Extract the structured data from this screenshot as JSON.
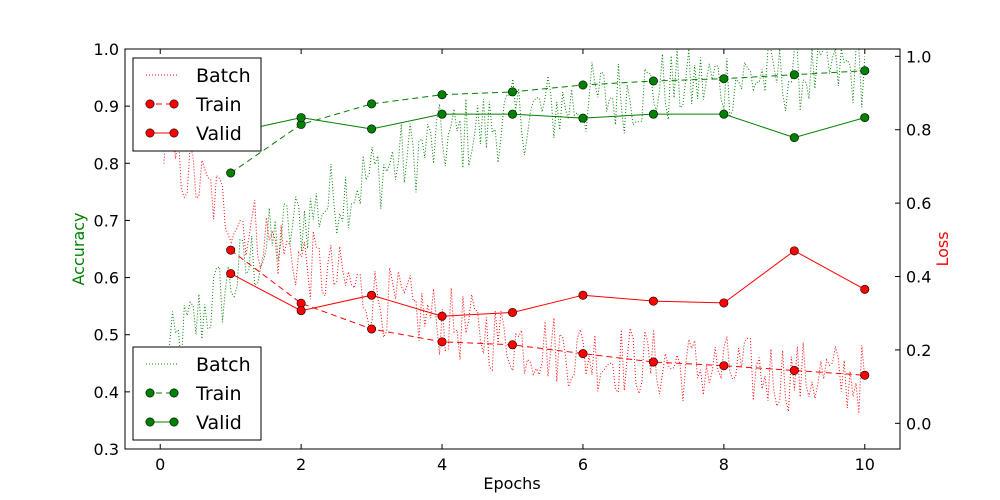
{
  "chart_data": {
    "type": "line",
    "xlabel": "Epochs",
    "ylabel_left": "Accuracy",
    "ylabel_right": "Loss",
    "xlim": [
      -0.5,
      10.5
    ],
    "ylim_left": [
      0.3,
      1.0
    ],
    "ylim_right": [
      -0.07,
      1.02
    ],
    "x_ticks": [
      0,
      2,
      4,
      6,
      8,
      10
    ],
    "y_ticks_left": [
      0.3,
      0.4,
      0.5,
      0.6,
      0.7,
      0.8,
      0.9,
      1.0
    ],
    "y_ticks_right": [
      0.0,
      0.2,
      0.4,
      0.6,
      0.8,
      1.0
    ],
    "colors": {
      "accuracy": "#008000",
      "loss": "#ff0000"
    },
    "legend_top": {
      "position": "upper-left",
      "series": [
        "Batch",
        "Train",
        "Valid"
      ]
    },
    "legend_bottom": {
      "position": "lower-left",
      "series": [
        "Batch",
        "Train",
        "Valid"
      ]
    },
    "accuracy_series": [
      {
        "name": "Train",
        "style": "dashed",
        "x": [
          1,
          2,
          3,
          4,
          5,
          6,
          7,
          8,
          9,
          10
        ],
        "values": [
          0.783,
          0.868,
          0.904,
          0.92,
          0.925,
          0.937,
          0.944,
          0.948,
          0.955,
          0.962
        ]
      },
      {
        "name": "Valid",
        "style": "solid",
        "x": [
          1,
          2,
          3,
          4,
          5,
          6,
          7,
          8,
          9,
          10
        ],
        "values": [
          0.853,
          0.88,
          0.86,
          0.886,
          0.886,
          0.879,
          0.886,
          0.886,
          0.845,
          0.88
        ]
      },
      {
        "name": "Batch",
        "style": "dotted",
        "x_start": 0.05,
        "x_end": 10.0,
        "count": 240,
        "trend_start": 0.45,
        "trend_end": 0.965,
        "noise": 0.07
      }
    ],
    "loss_series": [
      {
        "name": "Train",
        "style": "dashed",
        "x": [
          1,
          2,
          3,
          4,
          5,
          6,
          7,
          8,
          9,
          10
        ],
        "values": [
          0.472,
          0.327,
          0.257,
          0.222,
          0.214,
          0.19,
          0.167,
          0.157,
          0.144,
          0.131
        ]
      },
      {
        "name": "Valid",
        "style": "solid",
        "x": [
          1,
          2,
          3,
          4,
          5,
          6,
          7,
          8,
          9,
          10
        ],
        "values": [
          0.408,
          0.307,
          0.349,
          0.292,
          0.302,
          0.349,
          0.333,
          0.328,
          0.47,
          0.365
        ]
      },
      {
        "name": "Batch",
        "style": "dotted",
        "x_start": 0.05,
        "x_end": 10.0,
        "count": 240,
        "trend_start": 0.75,
        "trend_end": 0.12,
        "noise": 0.1
      }
    ]
  }
}
